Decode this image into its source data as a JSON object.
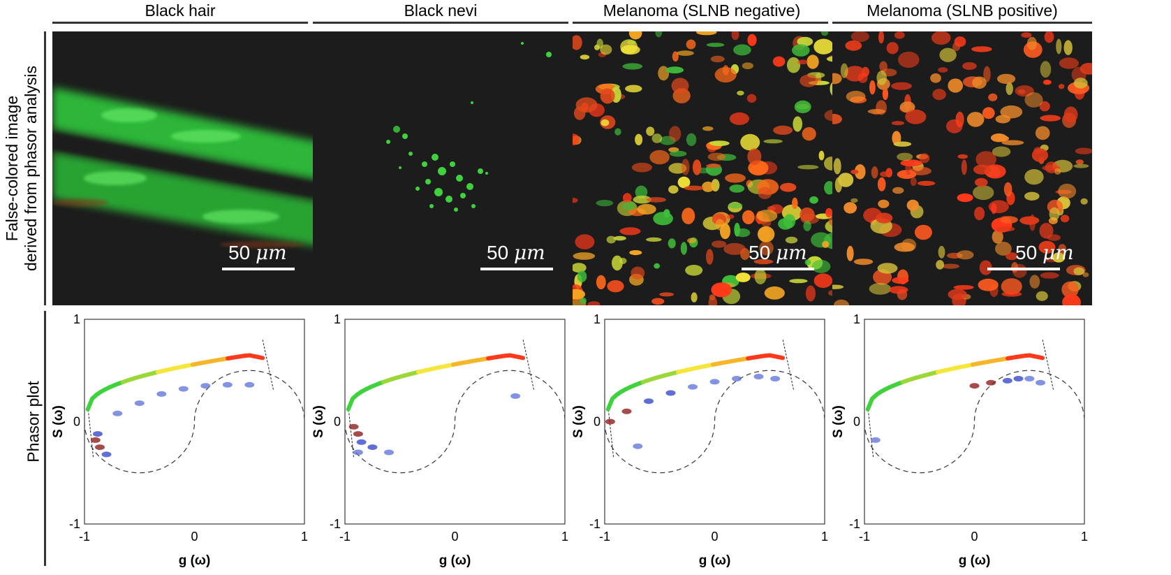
{
  "columns": [
    {
      "title": "Black hair",
      "scalebar": "50 μm"
    },
    {
      "title": "Black nevi",
      "scalebar": "50 μm"
    },
    {
      "title": "Melanoma (SLNB negative)",
      "scalebar": "50 μm"
    },
    {
      "title": "Melanoma (SLNB positive)",
      "scalebar": "50 μm"
    }
  ],
  "row_labels": {
    "top_line1": "False-colored image",
    "top_line2": "derived from phasor analysis",
    "bottom": "Phasor plot"
  },
  "scalebar_number": "50",
  "scalebar_unit": "μm",
  "axis": {
    "xlabel": "g (ω)",
    "ylabel": "S (ω)",
    "xticks": [
      "-1",
      "0",
      "1"
    ],
    "yticks": [
      "-1",
      "0",
      "1"
    ],
    "xlim": [
      -1,
      1
    ],
    "ylim": [
      -1,
      1
    ]
  },
  "colors": {
    "green": "#3fd23c",
    "red": "#ff3a1a",
    "yellow": "#f4e63a",
    "background": "#1c1c1c",
    "cluster_blue": "#2c3fc6"
  },
  "chart_data": [
    {
      "type": "scatter",
      "title": "Black hair",
      "xlabel": "g (ω)",
      "ylabel": "S (ω)",
      "xlim": [
        -1,
        1
      ],
      "ylim": [
        -1,
        1
      ],
      "series": [
        {
          "values": [
            [
              -0.9,
              -0.18
            ],
            [
              -0.86,
              -0.25
            ],
            [
              -0.8,
              -0.32
            ],
            [
              -0.88,
              -0.12
            ],
            [
              -0.7,
              0.08
            ],
            [
              -0.5,
              0.18
            ],
            [
              -0.3,
              0.27
            ],
            [
              -0.1,
              0.32
            ],
            [
              0.1,
              0.35
            ],
            [
              0.3,
              0.36
            ],
            [
              0.5,
              0.36
            ]
          ]
        }
      ]
    },
    {
      "type": "scatter",
      "title": "Black nevi",
      "xlabel": "g (ω)",
      "ylabel": "S (ω)",
      "xlim": [
        -1,
        1
      ],
      "ylim": [
        -1,
        1
      ],
      "series": [
        {
          "values": [
            [
              -0.92,
              -0.05
            ],
            [
              -0.88,
              -0.12
            ],
            [
              -0.85,
              -0.2
            ],
            [
              -0.75,
              -0.25
            ],
            [
              -0.6,
              -0.3
            ],
            [
              -0.88,
              -0.3
            ],
            [
              0.55,
              0.25
            ]
          ]
        }
      ]
    },
    {
      "type": "scatter",
      "title": "Melanoma (SLNB negative)",
      "xlabel": "g (ω)",
      "ylabel": "S (ω)",
      "xlim": [
        -1,
        1
      ],
      "ylim": [
        -1,
        1
      ],
      "series": [
        {
          "values": [
            [
              -0.95,
              0.0
            ],
            [
              -0.8,
              0.1
            ],
            [
              -0.6,
              0.2
            ],
            [
              -0.4,
              0.28
            ],
            [
              -0.2,
              0.34
            ],
            [
              0.0,
              0.39
            ],
            [
              0.2,
              0.42
            ],
            [
              0.4,
              0.44
            ],
            [
              0.55,
              0.42
            ],
            [
              -0.7,
              -0.24
            ]
          ]
        }
      ]
    },
    {
      "type": "scatter",
      "title": "Melanoma (SLNB positive)",
      "xlabel": "g (ω)",
      "ylabel": "S (ω)",
      "xlim": [
        -1,
        1
      ],
      "ylim": [
        -1,
        1
      ],
      "series": [
        {
          "values": [
            [
              0.0,
              0.35
            ],
            [
              0.15,
              0.38
            ],
            [
              0.3,
              0.4
            ],
            [
              0.4,
              0.42
            ],
            [
              0.5,
              0.42
            ],
            [
              0.6,
              0.38
            ],
            [
              -0.9,
              -0.18
            ]
          ]
        }
      ]
    }
  ]
}
